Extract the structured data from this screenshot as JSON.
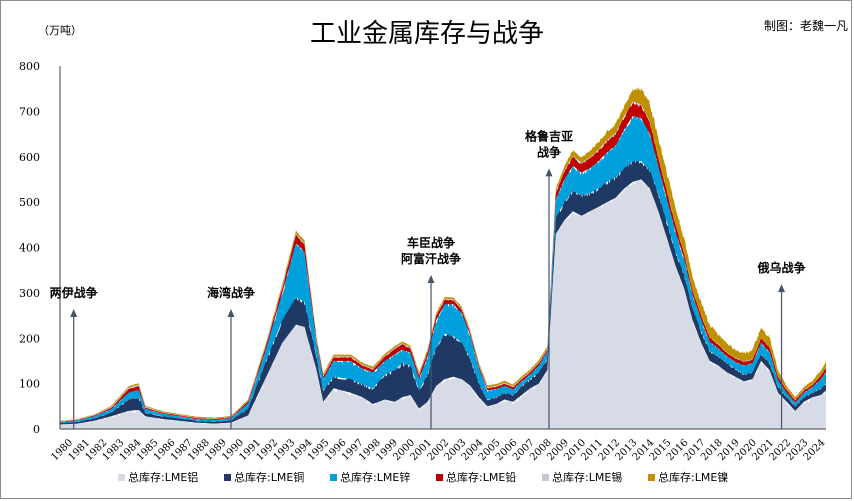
{
  "chart_data": {
    "type": "area",
    "title": "工业金属库存与战争",
    "credit": "制图：老魏一凡",
    "ylabel": "（万吨）",
    "ylim": [
      0,
      800
    ],
    "yticks": [
      0,
      100,
      200,
      300,
      400,
      500,
      600,
      700,
      800
    ],
    "xlim": [
      1980,
      2024.8
    ],
    "x_tick_labels": [
      "1980",
      "1981",
      "1982",
      "1983",
      "1984",
      "1985",
      "1986",
      "1987",
      "1988",
      "1989",
      "1990",
      "1991",
      "1992",
      "1993",
      "1994",
      "1995",
      "1996",
      "1997",
      "1998",
      "1999",
      "2000",
      "2001",
      "2002",
      "2003",
      "2004",
      "2005",
      "2006",
      "2007",
      "2008",
      "2009",
      "2010",
      "2011",
      "2012",
      "2013",
      "2014",
      "2015",
      "2016",
      "2017",
      "2018",
      "2019",
      "2020",
      "2021",
      "2022",
      "2023",
      "2024"
    ],
    "x": [
      1980,
      1981,
      1982,
      1983,
      1984,
      1984.6,
      1985,
      1986,
      1987,
      1988,
      1989,
      1990,
      1991,
      1992,
      1993,
      1993.8,
      1994.3,
      1995,
      1995.4,
      1996,
      1997,
      1997.7,
      1998.3,
      1999,
      1999.6,
      2000,
      2000.5,
      2001,
      2001.5,
      2002,
      2002.5,
      2003,
      2003.5,
      2004,
      2004.5,
      2005,
      2005.5,
      2006,
      2006.5,
      2007,
      2007.5,
      2008,
      2008.5,
      2009,
      2009.5,
      2010,
      2010.5,
      2011,
      2011.5,
      2012,
      2012.5,
      2013,
      2013.5,
      2014,
      2014.5,
      2015,
      2015.5,
      2016,
      2016.5,
      2017,
      2017.5,
      2018,
      2018.5,
      2019,
      2019.5,
      2020,
      2020.5,
      2021,
      2021.5,
      2022,
      2022.5,
      2023,
      2023.5,
      2024,
      2024.5,
      2024.8
    ],
    "series": [
      {
        "name": "总库存:LME铝",
        "color": "#d7dbe6",
        "values": [
          10,
          12,
          18,
          28,
          40,
          42,
          28,
          22,
          18,
          14,
          12,
          14,
          30,
          110,
          190,
          230,
          225,
          130,
          60,
          90,
          80,
          70,
          55,
          65,
          60,
          70,
          75,
          45,
          60,
          95,
          110,
          115,
          110,
          95,
          70,
          50,
          55,
          65,
          60,
          75,
          90,
          100,
          130,
          430,
          460,
          480,
          470,
          480,
          490,
          500,
          510,
          530,
          545,
          550,
          530,
          480,
          420,
          360,
          310,
          240,
          190,
          150,
          140,
          125,
          115,
          105,
          110,
          150,
          130,
          80,
          60,
          40,
          60,
          70,
          75,
          85
        ]
      },
      {
        "name": "总库存:LME铜",
        "color": "#1f3864",
        "values": [
          3,
          4,
          5,
          8,
          25,
          28,
          8,
          6,
          5,
          4,
          4,
          5,
          15,
          35,
          50,
          60,
          55,
          30,
          25,
          25,
          30,
          28,
          35,
          55,
          70,
          75,
          65,
          40,
          60,
          85,
          100,
          90,
          80,
          60,
          30,
          15,
          15,
          15,
          15,
          20,
          20,
          25,
          25,
          35,
          40,
          45,
          45,
          40,
          40,
          45,
          45,
          45,
          45,
          40,
          40,
          38,
          35,
          30,
          30,
          25,
          25,
          22,
          20,
          20,
          18,
          15,
          15,
          15,
          15,
          12,
          10,
          10,
          10,
          10,
          15,
          15
        ]
      },
      {
        "name": "总库存:LME锌",
        "color": "#00a0dc",
        "values": [
          2,
          3,
          5,
          8,
          15,
          16,
          8,
          6,
          5,
          4,
          4,
          5,
          12,
          25,
          60,
          120,
          110,
          30,
          25,
          35,
          40,
          35,
          35,
          30,
          35,
          30,
          28,
          25,
          40,
          60,
          65,
          70,
          65,
          50,
          35,
          20,
          18,
          15,
          12,
          10,
          10,
          15,
          15,
          40,
          50,
          55,
          50,
          55,
          60,
          65,
          70,
          85,
          100,
          95,
          80,
          60,
          50,
          45,
          35,
          30,
          25,
          20,
          18,
          15,
          15,
          20,
          20,
          25,
          25,
          15,
          10,
          8,
          10,
          12,
          20,
          25
        ]
      },
      {
        "name": "总库存:LME铅",
        "color": "#c00000",
        "values": [
          1,
          1,
          2,
          3,
          8,
          9,
          3,
          2,
          2,
          2,
          2,
          2,
          4,
          8,
          12,
          18,
          16,
          8,
          6,
          8,
          8,
          7,
          6,
          10,
          12,
          12,
          10,
          8,
          10,
          10,
          10,
          9,
          8,
          6,
          5,
          5,
          5,
          5,
          5,
          5,
          5,
          5,
          5,
          15,
          18,
          20,
          20,
          22,
          24,
          25,
          26,
          28,
          30,
          28,
          25,
          20,
          18,
          15,
          12,
          10,
          10,
          10,
          8,
          8,
          8,
          8,
          8,
          10,
          10,
          8,
          6,
          5,
          5,
          5,
          8,
          10
        ]
      },
      {
        "name": "总库存:LME锡",
        "color": "#c4c8d2",
        "values": [
          1,
          1,
          1,
          2,
          3,
          3,
          2,
          1,
          1,
          1,
          1,
          1,
          1,
          2,
          2,
          3,
          3,
          2,
          2,
          2,
          2,
          2,
          2,
          2,
          2,
          2,
          2,
          2,
          2,
          2,
          2,
          2,
          2,
          2,
          2,
          2,
          2,
          2,
          2,
          2,
          2,
          2,
          2,
          2,
          2,
          2,
          2,
          2,
          2,
          2,
          2,
          2,
          2,
          2,
          2,
          2,
          2,
          2,
          2,
          1,
          1,
          1,
          1,
          1,
          1,
          1,
          1,
          1,
          1,
          1,
          1,
          1,
          1,
          1,
          1,
          1
        ]
      },
      {
        "name": "总库存:LME镍",
        "color": "#bf9000",
        "values": [
          1,
          1,
          1,
          2,
          3,
          3,
          2,
          2,
          2,
          2,
          2,
          2,
          3,
          4,
          5,
          6,
          6,
          4,
          4,
          4,
          4,
          4,
          4,
          4,
          4,
          4,
          4,
          4,
          4,
          4,
          4,
          4,
          4,
          4,
          4,
          4,
          4,
          4,
          4,
          4,
          4,
          5,
          5,
          8,
          10,
          12,
          12,
          14,
          16,
          18,
          20,
          22,
          25,
          35,
          40,
          40,
          40,
          35,
          30,
          30,
          28,
          25,
          22,
          20,
          18,
          18,
          20,
          20,
          20,
          12,
          8,
          6,
          6,
          8,
          10,
          12
        ]
      }
    ],
    "annotations": [
      {
        "label": "两伊战争",
        "x": 1980.8,
        "y_tip": 260
      },
      {
        "label": "海湾战争",
        "x": 1990.0,
        "y_tip": 260
      },
      {
        "label": "车臣战争",
        "label2": "阿富汗战争",
        "x": 2001.7,
        "y_tip": 335
      },
      {
        "label": "格鲁吉亚",
        "label2": "战争",
        "x": 2008.6,
        "y_tip": 570
      },
      {
        "label": "俄乌战争",
        "x": 2022.2,
        "y_tip": 315
      }
    ]
  }
}
